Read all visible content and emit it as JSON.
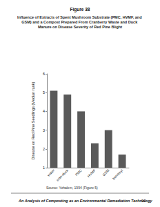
{
  "chart_data": {
    "type": "bar",
    "title": "Figure 38",
    "subtitle": "Influence of Extracts of Spent Mushroom Substrate (PMC, HVMF, and GSM) and a Compost Prepared From Cranberry Waste and Duck Manure on Disease Severity of Red Pine Blight",
    "y_label": "Disease on Red Pine Seedlings (Median rank)",
    "categories": [
      "water",
      "cran-duck",
      "PMC",
      "HVMF",
      "GSM",
      "benomyl"
    ],
    "values": [
      5.1,
      4.9,
      4.0,
      2.3,
      3.0,
      1.7
    ],
    "color": "#5a5a5a",
    "ylim": [
      1,
      6
    ],
    "yticks": [
      1,
      2,
      3,
      4,
      5,
      6
    ],
    "grid": false,
    "annotations": [
      "Source: Yohalem, 1994 (Figure 5)",
      "An Analysis of Composting as an Environmental Remediation Technology",
      "91"
    ]
  }
}
